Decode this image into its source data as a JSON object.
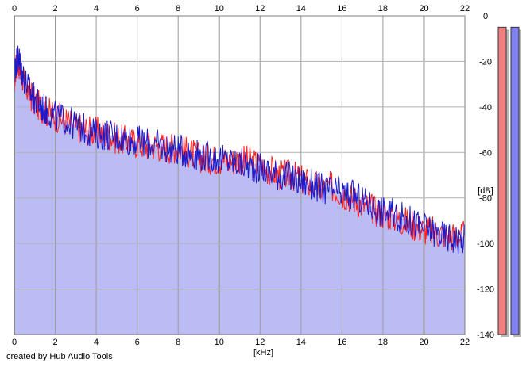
{
  "chart_data": {
    "type": "area",
    "title": "",
    "xlabel": "[kHz]",
    "ylabel": "[dB]",
    "xlim": [
      0,
      22
    ],
    "ylim": [
      -140,
      0
    ],
    "x_ticks": [
      0,
      2,
      4,
      6,
      8,
      10,
      12,
      14,
      16,
      18,
      20,
      22
    ],
    "y_ticks": [
      0,
      -20,
      -40,
      -60,
      -80,
      -100,
      -120,
      -140
    ],
    "grid": true,
    "series": [
      {
        "color": "#ff2020",
        "x": [
          0,
          0.1,
          0.2,
          0.3,
          0.5,
          0.8,
          1.0,
          1.3,
          1.6,
          2.0,
          2.5,
          3.0,
          3.5,
          4.0,
          4.5,
          5.0,
          5.5,
          6.0,
          6.5,
          7.0,
          7.5,
          8.0,
          8.5,
          9.0,
          9.5,
          10.0,
          10.5,
          11.0,
          11.5,
          12.0,
          12.5,
          13.0,
          13.5,
          14.0,
          14.5,
          15.0,
          15.5,
          16.0,
          16.5,
          17.0,
          17.5,
          18.0,
          18.5,
          19.0,
          19.5,
          20.0,
          20.5,
          21.0,
          21.5,
          22.0
        ],
        "y": [
          -28,
          -22,
          -20,
          -24,
          -30,
          -35,
          -38,
          -40,
          -42,
          -44,
          -46,
          -49,
          -50,
          -51,
          -52,
          -54,
          -55,
          -56,
          -57,
          -57,
          -58,
          -58,
          -60,
          -62,
          -63,
          -63,
          -64,
          -63,
          -64,
          -66,
          -68,
          -70,
          -70,
          -72,
          -74,
          -76,
          -75,
          -78,
          -80,
          -83,
          -85,
          -87,
          -88,
          -90,
          -92,
          -94,
          -95,
          -96,
          -97,
          -97
        ]
      },
      {
        "color": "#1a1acc",
        "x": [
          0,
          0.1,
          0.2,
          0.3,
          0.5,
          0.8,
          1.0,
          1.3,
          1.6,
          2.0,
          2.5,
          3.0,
          3.5,
          4.0,
          4.5,
          5.0,
          5.5,
          6.0,
          6.5,
          7.0,
          7.5,
          8.0,
          8.5,
          9.0,
          9.5,
          10.0,
          10.5,
          11.0,
          11.5,
          12.0,
          12.5,
          13.0,
          13.5,
          14.0,
          14.5,
          15.0,
          15.5,
          16.0,
          16.5,
          17.0,
          17.5,
          18.0,
          18.5,
          19.0,
          19.5,
          20.0,
          20.5,
          21.0,
          21.5,
          22.0
        ],
        "y": [
          -25,
          -20,
          -18,
          -22,
          -28,
          -34,
          -37,
          -40,
          -42,
          -44,
          -46,
          -48,
          -50,
          -52,
          -52,
          -53,
          -54,
          -55,
          -56,
          -57,
          -58,
          -59,
          -60,
          -61,
          -62,
          -63,
          -64,
          -65,
          -66,
          -67,
          -69,
          -70,
          -71,
          -73,
          -74,
          -76,
          -77,
          -78,
          -79,
          -81,
          -84,
          -86,
          -87,
          -89,
          -91,
          -93,
          -95,
          -97,
          -98,
          -98
        ]
      }
    ],
    "level_meters": [
      {
        "color": "#f08080",
        "level_db": -5
      },
      {
        "color": "#8080f0",
        "level_db": -5
      }
    ]
  },
  "footer": {
    "credit": "created by Hub Audio Tools"
  }
}
